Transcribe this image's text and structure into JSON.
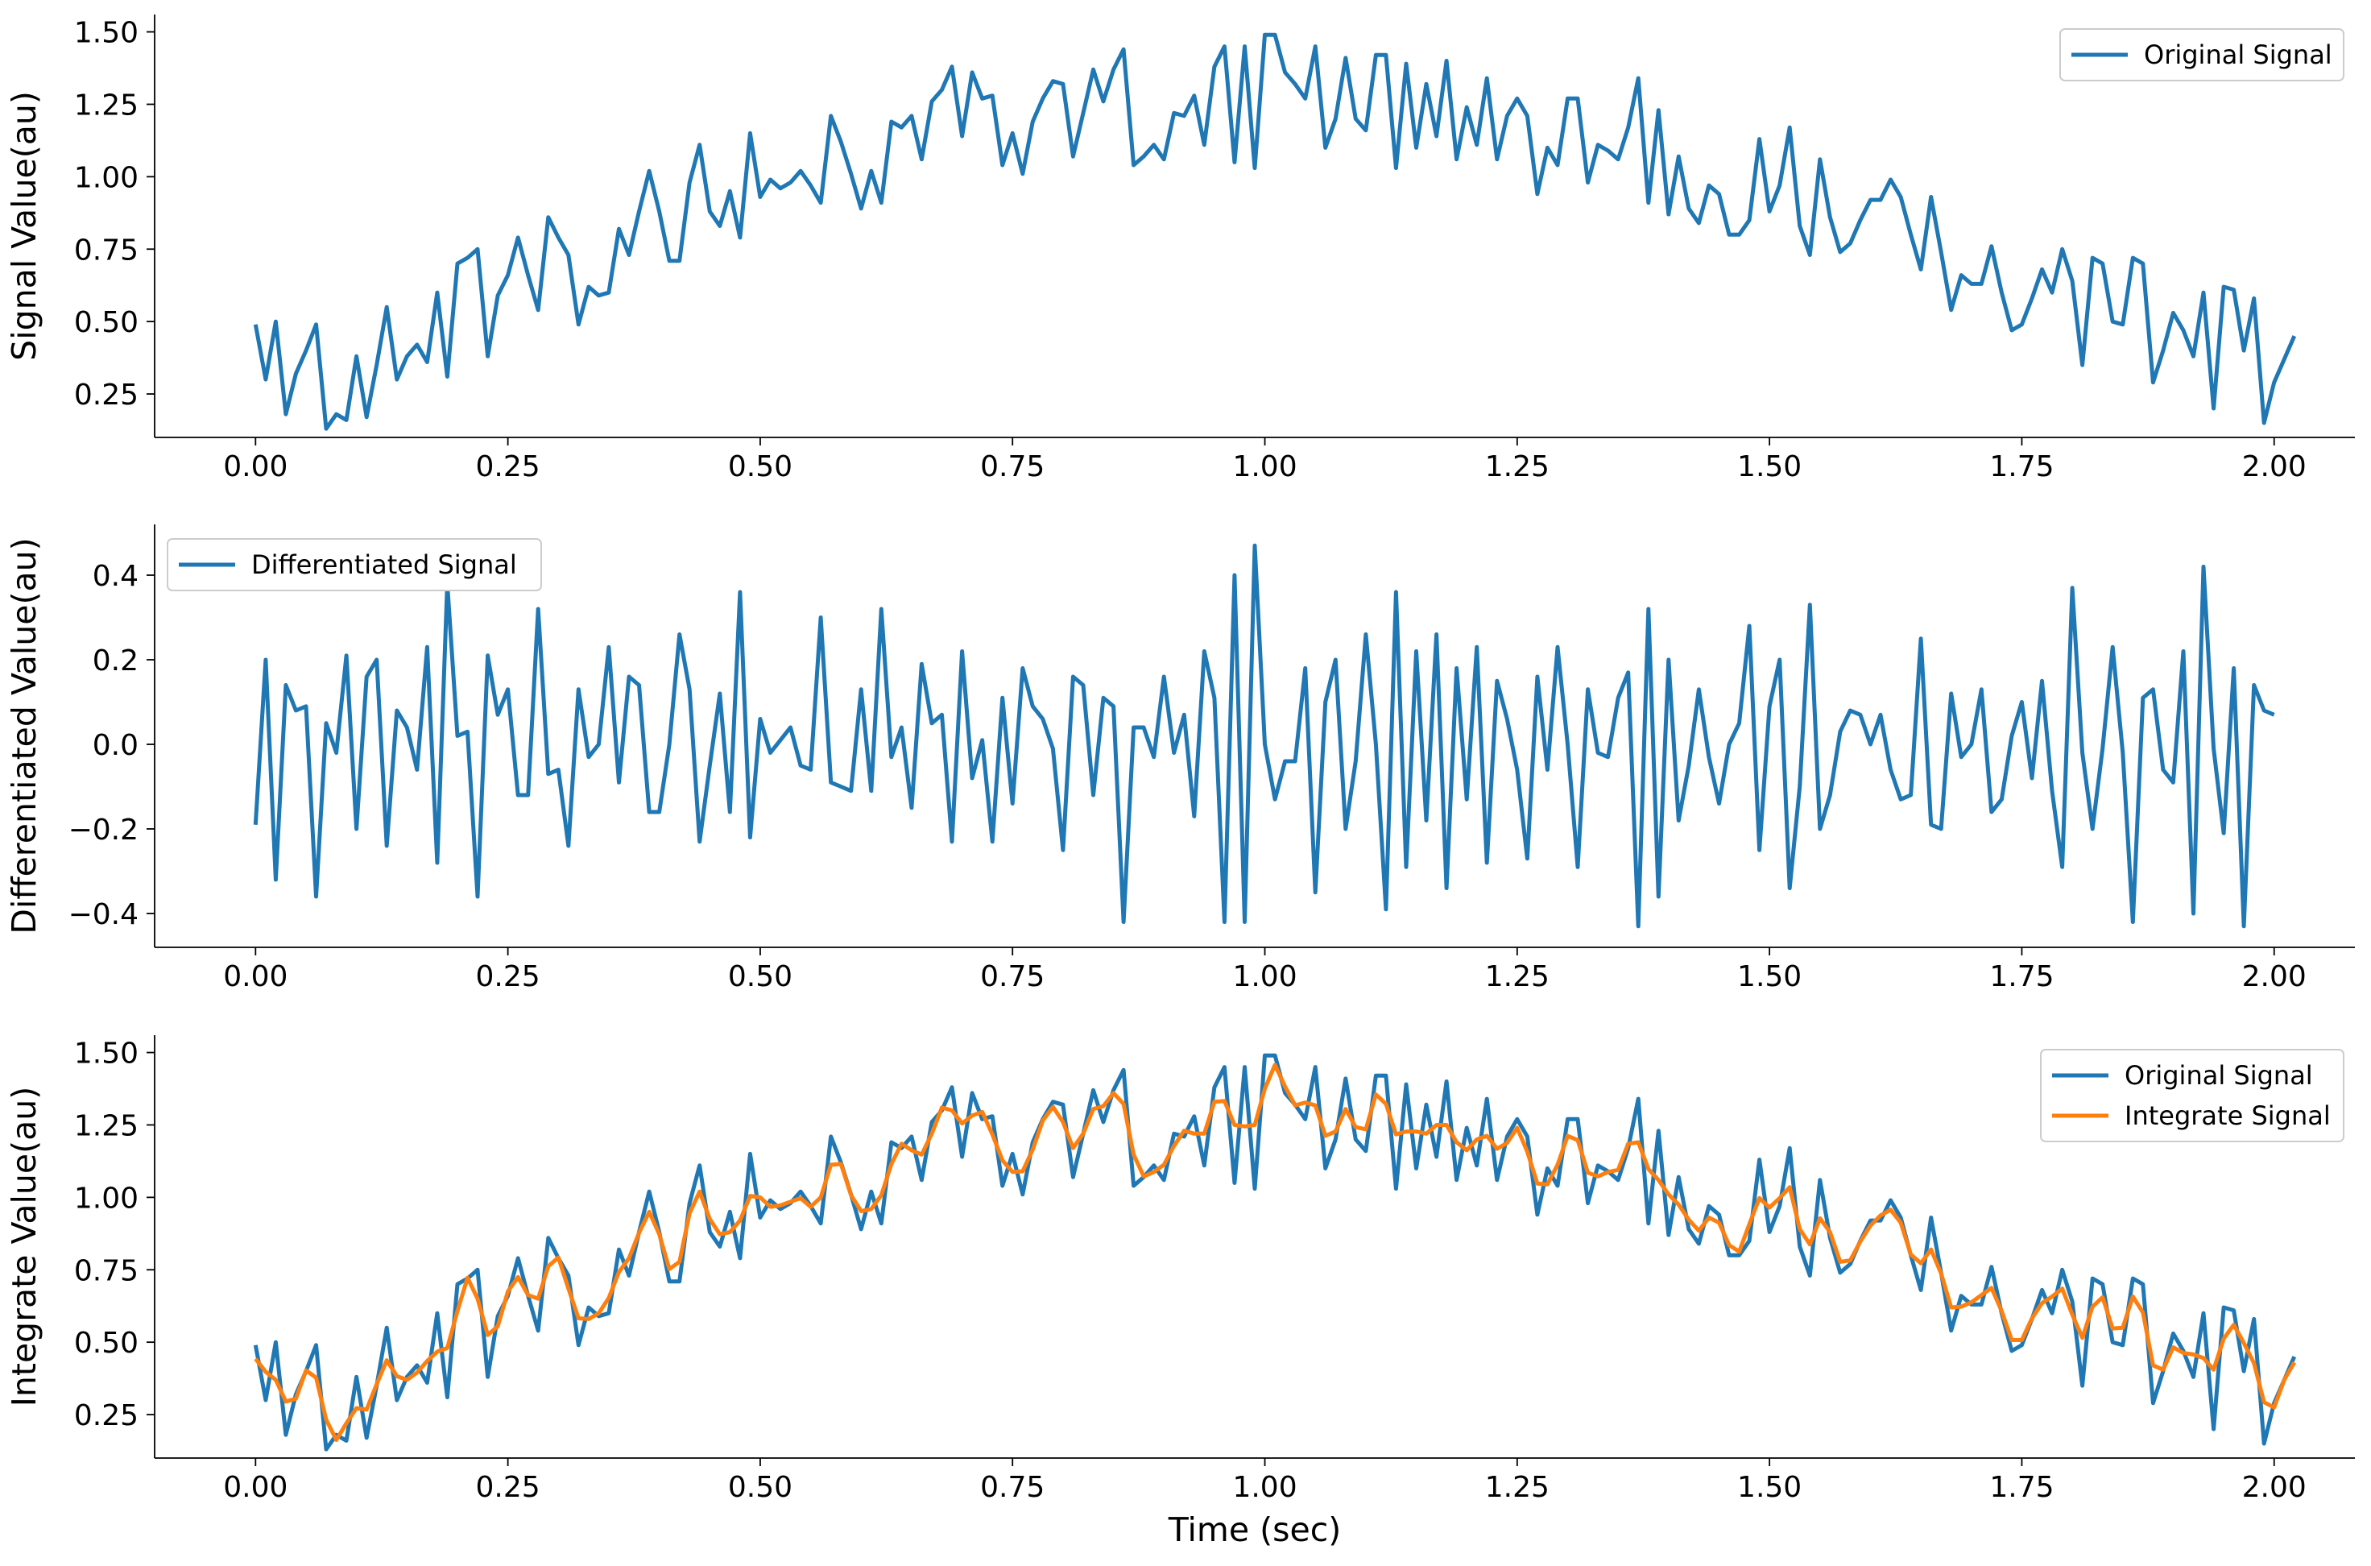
{
  "chart_data": [
    {
      "type": "line",
      "ylabel": "Signal Value(au)",
      "xlabel": "",
      "xlim": [
        -0.1,
        2.08
      ],
      "ylim": [
        0.1,
        1.56
      ],
      "xticks": [
        "0.00",
        "0.25",
        "0.50",
        "0.75",
        "1.00",
        "1.25",
        "1.50",
        "1.75",
        "2.00"
      ],
      "yticks": [
        "0.25",
        "0.50",
        "0.75",
        "1.00",
        "1.25",
        "1.50"
      ],
      "legend_position": "upper right",
      "series": [
        {
          "name": "Original Signal",
          "color": "#1f77b4",
          "x_start": 0.0,
          "x_step": 0.01,
          "values": [
            0.49,
            0.3,
            0.5,
            0.18,
            0.32,
            0.4,
            0.49,
            0.13,
            0.18,
            0.16,
            0.38,
            0.17,
            0.35,
            0.55,
            0.3,
            0.38,
            0.42,
            0.36,
            0.6,
            0.31,
            0.7,
            0.72,
            0.75,
            0.38,
            0.59,
            0.66,
            0.79,
            0.66,
            0.54,
            0.86,
            0.79,
            0.73,
            0.49,
            0.62,
            0.59,
            0.6,
            0.82,
            0.73,
            0.88,
            1.02,
            0.88,
            0.71,
            0.71,
            0.98,
            1.11,
            0.88,
            0.83,
            0.95,
            0.79,
            1.15,
            0.93,
            0.99,
            0.96,
            0.98,
            1.02,
            0.97,
            0.91,
            1.21,
            1.12,
            1.01,
            0.89,
            1.02,
            0.91,
            1.19,
            1.17,
            1.21,
            1.06,
            1.26,
            1.3,
            1.38,
            1.14,
            1.36,
            1.27,
            1.28,
            1.04,
            1.15,
            1.01,
            1.19,
            1.27,
            1.33,
            1.32,
            1.07,
            1.22,
            1.37,
            1.26,
            1.37,
            1.44,
            1.04,
            1.07,
            1.11,
            1.06,
            1.22,
            1.21,
            1.28,
            1.11,
            1.38,
            1.45,
            1.05,
            1.45,
            1.03,
            1.49,
            1.49,
            1.36,
            1.32,
            1.27,
            1.45,
            1.1,
            1.2,
            1.41,
            1.2,
            1.16,
            1.42,
            1.42,
            1.03,
            1.39,
            1.1,
            1.32,
            1.14,
            1.4,
            1.06,
            1.24,
            1.11,
            1.34,
            1.06,
            1.21,
            1.27,
            1.21,
            0.94,
            1.1,
            1.04,
            1.27,
            1.27,
            0.98,
            1.11,
            1.09,
            1.06,
            1.17,
            1.34,
            0.91,
            1.23,
            0.87,
            1.07,
            0.89,
            0.84,
            0.97,
            0.94,
            0.8,
            0.8,
            0.85,
            1.13,
            0.88,
            0.97,
            1.17,
            0.83,
            0.73,
            1.06,
            0.86,
            0.74,
            0.77,
            0.85,
            0.92,
            0.92,
            0.99,
            0.93,
            0.8,
            0.68,
            0.93,
            0.74,
            0.54,
            0.66,
            0.63,
            0.63,
            0.76,
            0.6,
            0.47,
            0.49,
            0.58,
            0.68,
            0.6,
            0.75,
            0.64,
            0.35,
            0.72,
            0.7,
            0.5,
            0.49,
            0.72,
            0.7,
            0.29,
            0.4,
            0.53,
            0.47,
            0.38,
            0.6,
            0.2,
            0.62,
            0.61,
            0.4,
            0.58,
            0.15,
            0.29,
            0.37,
            0.45
          ]
        }
      ]
    },
    {
      "type": "line",
      "ylabel": "Differentiated Value(au)",
      "xlabel": "",
      "xlim": [
        -0.1,
        2.08
      ],
      "ylim": [
        -0.48,
        0.52
      ],
      "xticks": [
        "0.00",
        "0.25",
        "0.50",
        "0.75",
        "1.00",
        "1.25",
        "1.50",
        "1.75",
        "2.00"
      ],
      "yticks": [
        "−0.4",
        "−0.2",
        "0.0",
        "0.2",
        "0.4"
      ],
      "legend_position": "upper left",
      "series": [
        {
          "name": "Differentiated Signal",
          "color": "#1f77b4",
          "x_start": 0.0,
          "x_step": 0.01,
          "values": [
            -0.19,
            0.2,
            -0.32,
            0.14,
            0.08,
            0.09,
            -0.36,
            0.05,
            -0.02,
            0.21,
            -0.2,
            0.16,
            0.2,
            -0.24,
            0.08,
            0.04,
            -0.06,
            0.23,
            -0.28,
            0.38,
            0.02,
            0.03,
            -0.36,
            0.21,
            0.07,
            0.13,
            -0.12,
            -0.12,
            0.32,
            -0.07,
            -0.06,
            -0.24,
            0.13,
            -0.03,
            0.0,
            0.23,
            -0.09,
            0.16,
            0.14,
            -0.16,
            -0.16,
            0.0,
            0.26,
            0.13,
            -0.23,
            -0.05,
            0.12,
            -0.16,
            0.36,
            -0.22,
            0.06,
            -0.02,
            0.01,
            0.04,
            -0.05,
            -0.06,
            0.3,
            -0.09,
            -0.1,
            -0.11,
            0.13,
            -0.11,
            0.32,
            -0.03,
            0.04,
            -0.15,
            0.19,
            0.05,
            0.07,
            -0.23,
            0.22,
            -0.08,
            0.01,
            -0.23,
            0.11,
            -0.14,
            0.18,
            0.09,
            0.06,
            -0.01,
            -0.25,
            0.16,
            0.14,
            -0.12,
            0.11,
            0.09,
            -0.42,
            0.04,
            0.04,
            -0.03,
            0.16,
            -0.02,
            0.07,
            -0.17,
            0.22,
            0.11,
            -0.42,
            0.4,
            -0.42,
            0.47,
            0.0,
            -0.13,
            -0.04,
            -0.04,
            0.18,
            -0.35,
            0.1,
            0.2,
            -0.2,
            -0.04,
            0.26,
            0.0,
            -0.39,
            0.36,
            -0.29,
            0.22,
            -0.18,
            0.26,
            -0.34,
            0.18,
            -0.13,
            0.23,
            -0.28,
            0.15,
            0.06,
            -0.06,
            -0.27,
            0.16,
            -0.06,
            0.23,
            0.0,
            -0.29,
            0.13,
            -0.02,
            -0.03,
            0.11,
            0.17,
            -0.43,
            0.32,
            -0.36,
            0.2,
            -0.18,
            -0.05,
            0.13,
            -0.03,
            -0.14,
            0.0,
            0.05,
            0.28,
            -0.25,
            0.09,
            0.2,
            -0.34,
            -0.1,
            0.33,
            -0.2,
            -0.12,
            0.03,
            0.08,
            0.07,
            0.0,
            0.07,
            -0.06,
            -0.13,
            -0.12,
            0.25,
            -0.19,
            -0.2,
            0.12,
            -0.03,
            0.0,
            0.13,
            -0.16,
            -0.13,
            0.02,
            0.1,
            -0.08,
            0.15,
            -0.11,
            -0.29,
            0.37,
            -0.02,
            -0.2,
            -0.01,
            0.23,
            -0.02,
            -0.42,
            0.11,
            0.13,
            -0.06,
            -0.09,
            0.22,
            -0.4,
            0.42,
            -0.01,
            -0.21,
            0.18,
            -0.43,
            0.14,
            0.08,
            0.07
          ]
        }
      ]
    },
    {
      "type": "line",
      "ylabel": "Integrate Value(au)",
      "xlabel": "Time (sec)",
      "xlim": [
        -0.1,
        2.08
      ],
      "ylim": [
        0.1,
        1.56
      ],
      "xticks": [
        "0.00",
        "0.25",
        "0.50",
        "0.75",
        "1.00",
        "1.25",
        "1.50",
        "1.75",
        "2.00"
      ],
      "yticks": [
        "0.25",
        "0.50",
        "0.75",
        "1.00",
        "1.25",
        "1.50"
      ],
      "legend_position": "upper right",
      "series": [
        {
          "name": "Original Signal",
          "color": "#1f77b4",
          "x_start": 0.0,
          "x_step": 0.01,
          "values": [
            0.49,
            0.3,
            0.5,
            0.18,
            0.32,
            0.4,
            0.49,
            0.13,
            0.18,
            0.16,
            0.38,
            0.17,
            0.35,
            0.55,
            0.3,
            0.38,
            0.42,
            0.36,
            0.6,
            0.31,
            0.7,
            0.72,
            0.75,
            0.38,
            0.59,
            0.66,
            0.79,
            0.66,
            0.54,
            0.86,
            0.79,
            0.73,
            0.49,
            0.62,
            0.59,
            0.6,
            0.82,
            0.73,
            0.88,
            1.02,
            0.88,
            0.71,
            0.71,
            0.98,
            1.11,
            0.88,
            0.83,
            0.95,
            0.79,
            1.15,
            0.93,
            0.99,
            0.96,
            0.98,
            1.02,
            0.97,
            0.91,
            1.21,
            1.12,
            1.01,
            0.89,
            1.02,
            0.91,
            1.19,
            1.17,
            1.21,
            1.06,
            1.26,
            1.3,
            1.38,
            1.14,
            1.36,
            1.27,
            1.28,
            1.04,
            1.15,
            1.01,
            1.19,
            1.27,
            1.33,
            1.32,
            1.07,
            1.22,
            1.37,
            1.26,
            1.37,
            1.44,
            1.04,
            1.07,
            1.11,
            1.06,
            1.22,
            1.21,
            1.28,
            1.11,
            1.38,
            1.45,
            1.05,
            1.45,
            1.03,
            1.49,
            1.49,
            1.36,
            1.32,
            1.27,
            1.45,
            1.1,
            1.2,
            1.41,
            1.2,
            1.16,
            1.42,
            1.42,
            1.03,
            1.39,
            1.1,
            1.32,
            1.14,
            1.4,
            1.06,
            1.24,
            1.11,
            1.34,
            1.06,
            1.21,
            1.27,
            1.21,
            0.94,
            1.1,
            1.04,
            1.27,
            1.27,
            0.98,
            1.11,
            1.09,
            1.06,
            1.17,
            1.34,
            0.91,
            1.23,
            0.87,
            1.07,
            0.89,
            0.84,
            0.97,
            0.94,
            0.8,
            0.8,
            0.85,
            1.13,
            0.88,
            0.97,
            1.17,
            0.83,
            0.73,
            1.06,
            0.86,
            0.74,
            0.77,
            0.85,
            0.92,
            0.92,
            0.99,
            0.93,
            0.8,
            0.68,
            0.93,
            0.74,
            0.54,
            0.66,
            0.63,
            0.63,
            0.76,
            0.6,
            0.47,
            0.49,
            0.58,
            0.68,
            0.6,
            0.75,
            0.64,
            0.35,
            0.72,
            0.7,
            0.5,
            0.49,
            0.72,
            0.7,
            0.29,
            0.4,
            0.53,
            0.47,
            0.38,
            0.6,
            0.2,
            0.62,
            0.61,
            0.4,
            0.58,
            0.15,
            0.29,
            0.37,
            0.45
          ]
        },
        {
          "name": "Integrate Signal",
          "color": "#ff7f0e",
          "x_start": 0.0,
          "x_step": 0.01,
          "smooth_of": "Original Signal"
        }
      ]
    }
  ]
}
